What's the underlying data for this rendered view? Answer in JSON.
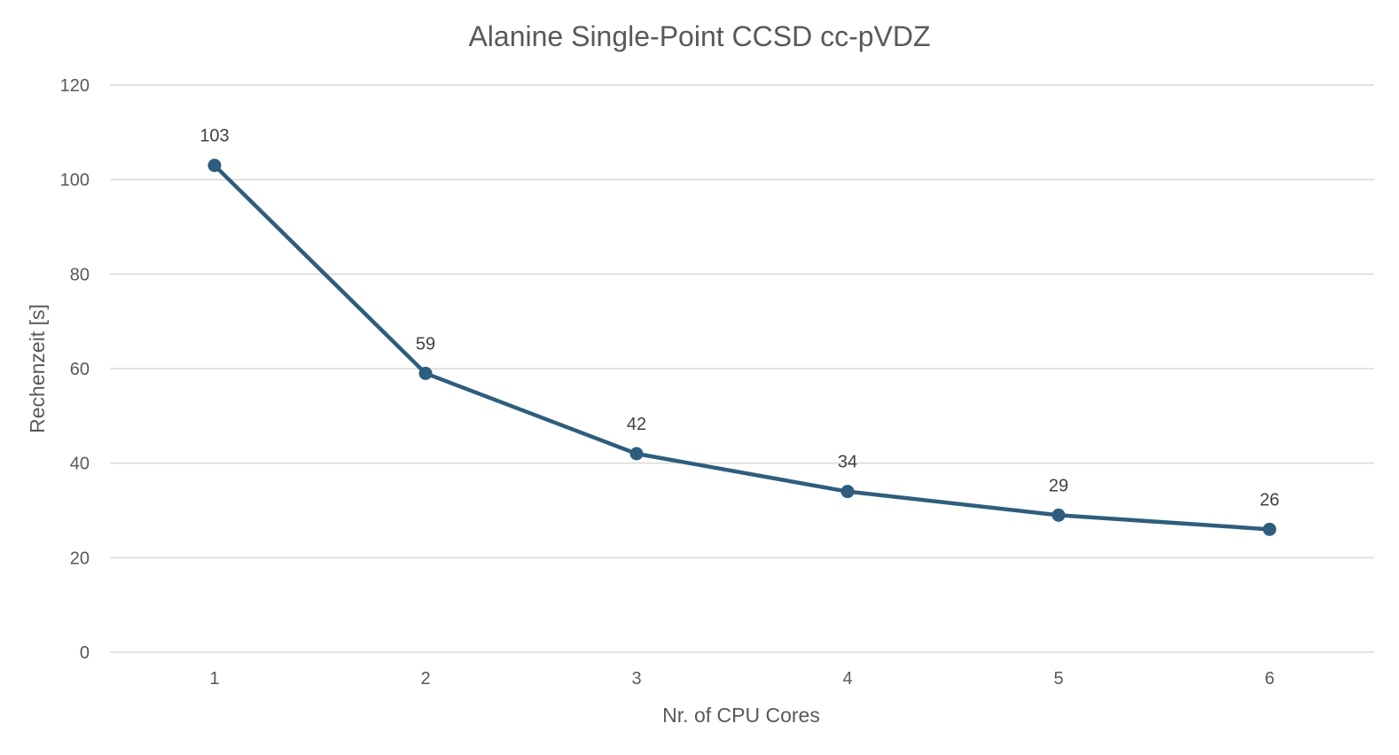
{
  "chart_data": {
    "type": "line",
    "title": "Alanine Single-Point CCSD cc-pVDZ",
    "xlabel": "Nr. of CPU Cores",
    "ylabel": "Rechenzeit [s]",
    "categories": [
      "1",
      "2",
      "3",
      "4",
      "5",
      "6"
    ],
    "series": [
      {
        "name": "Rechenzeit",
        "values": [
          103,
          59,
          42,
          34,
          29,
          26
        ],
        "color": "#2e5d7d"
      }
    ],
    "data_labels": [
      "103",
      "59",
      "42",
      "34",
      "29",
      "26"
    ],
    "ylim": [
      0,
      120
    ],
    "yticks": [
      0,
      20,
      40,
      60,
      80,
      100,
      120
    ],
    "ytick_labels": [
      "0",
      "20",
      "40",
      "60",
      "80",
      "100",
      "120"
    ],
    "grid": true,
    "legend": "none"
  }
}
